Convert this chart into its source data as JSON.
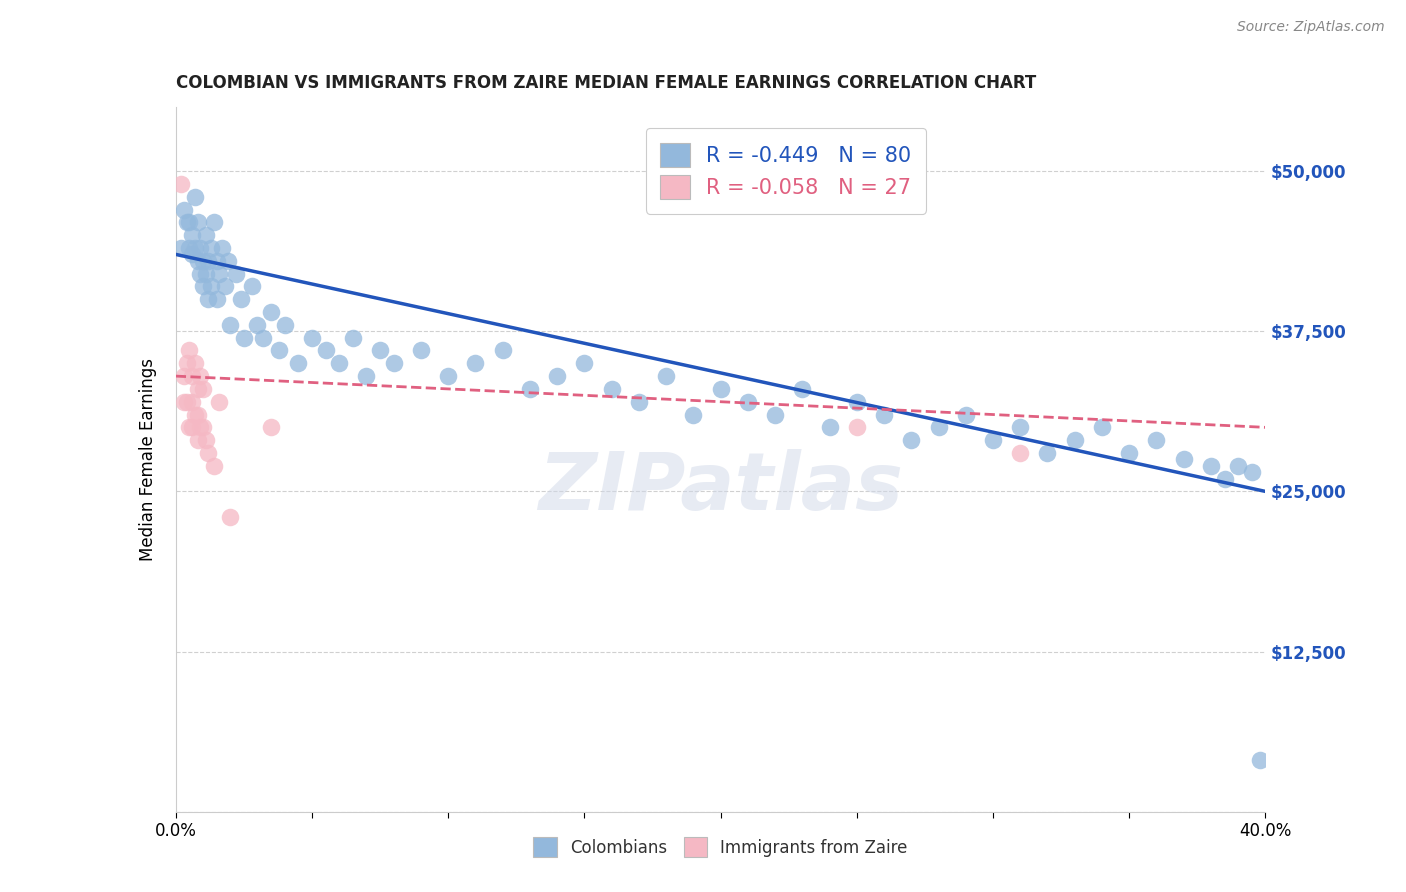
{
  "title": "COLOMBIAN VS IMMIGRANTS FROM ZAIRE MEDIAN FEMALE EARNINGS CORRELATION CHART",
  "source": "Source: ZipAtlas.com",
  "ylabel": "Median Female Earnings",
  "x_min": 0.0,
  "x_max": 0.4,
  "y_min": 0,
  "y_max": 55000,
  "yticks": [
    0,
    12500,
    25000,
    37500,
    50000
  ],
  "ytick_labels": [
    "",
    "$12,500",
    "$25,000",
    "$37,500",
    "$50,000"
  ],
  "xticks": [
    0.0,
    0.05,
    0.1,
    0.15,
    0.2,
    0.25,
    0.3,
    0.35,
    0.4
  ],
  "xtick_labels": [
    "0.0%",
    "",
    "",
    "",
    "",
    "",
    "",
    "",
    "40.0%"
  ],
  "blue_color": "#93b8dc",
  "pink_color": "#f5b8c4",
  "blue_line_color": "#2255bb",
  "pink_line_color": "#e06080",
  "R_blue": -0.449,
  "N_blue": 80,
  "R_pink": -0.058,
  "N_pink": 27,
  "legend_label_blue": "Colombians",
  "legend_label_pink": "Immigrants from Zaire",
  "watermark": "ZIPatlas",
  "background_color": "#ffffff",
  "blue_scatter_x": [
    0.002,
    0.003,
    0.004,
    0.005,
    0.005,
    0.006,
    0.006,
    0.007,
    0.007,
    0.008,
    0.008,
    0.009,
    0.009,
    0.01,
    0.01,
    0.011,
    0.011,
    0.012,
    0.012,
    0.013,
    0.013,
    0.014,
    0.015,
    0.015,
    0.016,
    0.017,
    0.018,
    0.019,
    0.02,
    0.022,
    0.024,
    0.025,
    0.028,
    0.03,
    0.032,
    0.035,
    0.038,
    0.04,
    0.045,
    0.05,
    0.055,
    0.06,
    0.065,
    0.07,
    0.075,
    0.08,
    0.09,
    0.1,
    0.11,
    0.12,
    0.13,
    0.14,
    0.15,
    0.16,
    0.17,
    0.18,
    0.19,
    0.2,
    0.21,
    0.22,
    0.23,
    0.24,
    0.25,
    0.26,
    0.27,
    0.28,
    0.29,
    0.3,
    0.31,
    0.32,
    0.33,
    0.34,
    0.35,
    0.36,
    0.37,
    0.38,
    0.385,
    0.39,
    0.395,
    0.398
  ],
  "blue_scatter_y": [
    44000,
    47000,
    46000,
    46000,
    44000,
    45000,
    43500,
    48000,
    44000,
    43000,
    46000,
    42000,
    44000,
    43000,
    41000,
    45000,
    42000,
    43000,
    40000,
    44000,
    41000,
    46000,
    43000,
    40000,
    42000,
    44000,
    41000,
    43000,
    38000,
    42000,
    40000,
    37000,
    41000,
    38000,
    37000,
    39000,
    36000,
    38000,
    35000,
    37000,
    36000,
    35000,
    37000,
    34000,
    36000,
    35000,
    36000,
    34000,
    35000,
    36000,
    33000,
    34000,
    35000,
    33000,
    32000,
    34000,
    31000,
    33000,
    32000,
    31000,
    33000,
    30000,
    32000,
    31000,
    29000,
    30000,
    31000,
    29000,
    30000,
    28000,
    29000,
    30000,
    28000,
    29000,
    27500,
    27000,
    26000,
    27000,
    26500,
    4000
  ],
  "pink_scatter_x": [
    0.002,
    0.003,
    0.003,
    0.004,
    0.004,
    0.005,
    0.005,
    0.006,
    0.006,
    0.006,
    0.007,
    0.007,
    0.008,
    0.008,
    0.008,
    0.009,
    0.009,
    0.01,
    0.01,
    0.011,
    0.012,
    0.014,
    0.016,
    0.02,
    0.035,
    0.25,
    0.31
  ],
  "pink_scatter_y": [
    49000,
    34000,
    32000,
    35000,
    32000,
    36000,
    30000,
    34000,
    32000,
    30000,
    35000,
    31000,
    33000,
    31000,
    29000,
    34000,
    30000,
    33000,
    30000,
    29000,
    28000,
    27000,
    32000,
    23000,
    30000,
    30000,
    28000
  ],
  "blue_line_x0": 0.0,
  "blue_line_x1": 0.4,
  "blue_line_y0": 43500,
  "blue_line_y1": 25000,
  "pink_line_x0": 0.0,
  "pink_line_x1": 0.4,
  "pink_line_y0": 34000,
  "pink_line_y1": 30000
}
